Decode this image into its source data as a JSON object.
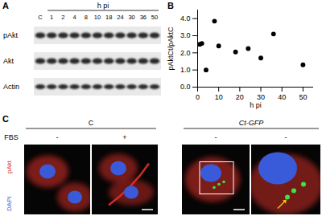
{
  "chart_data": {
    "type": "scatter",
    "label": "B",
    "x_label": "h pi",
    "y_label": "pAktCt/pAktC",
    "x": [
      1,
      2,
      4,
      8,
      10,
      18,
      24,
      30,
      36,
      50
    ],
    "values": [
      2.5,
      2.55,
      1.0,
      3.85,
      2.4,
      2.05,
      2.25,
      1.7,
      3.1,
      1.3
    ],
    "color": "#000000",
    "marker": "circle",
    "xlim": [
      0,
      55
    ],
    "xticks": [
      0,
      10,
      20,
      30,
      40,
      50
    ],
    "ylim": [
      0,
      4.5
    ],
    "yticks": [
      0,
      1,
      2,
      3,
      4
    ],
    "grid": false
  },
  "figure": {
    "panel_a": {
      "label": "A",
      "header": "h pi",
      "lanes": [
        "C",
        "1",
        "2",
        "4",
        "8",
        "10",
        "18",
        "24",
        "30",
        "36",
        "50"
      ],
      "rows": [
        "pAkt",
        "Akt",
        "Actin"
      ]
    },
    "panel_c": {
      "label": "C",
      "groups": [
        "C",
        "Ct-GFP"
      ],
      "row_label": "FBS",
      "conditions": [
        "-",
        "+",
        "-",
        "-"
      ],
      "stains": [
        {
          "text": "pAkt",
          "color": "#e0302a"
        },
        {
          "text": "DAPI",
          "color": "#3a5bd9"
        }
      ]
    }
  }
}
